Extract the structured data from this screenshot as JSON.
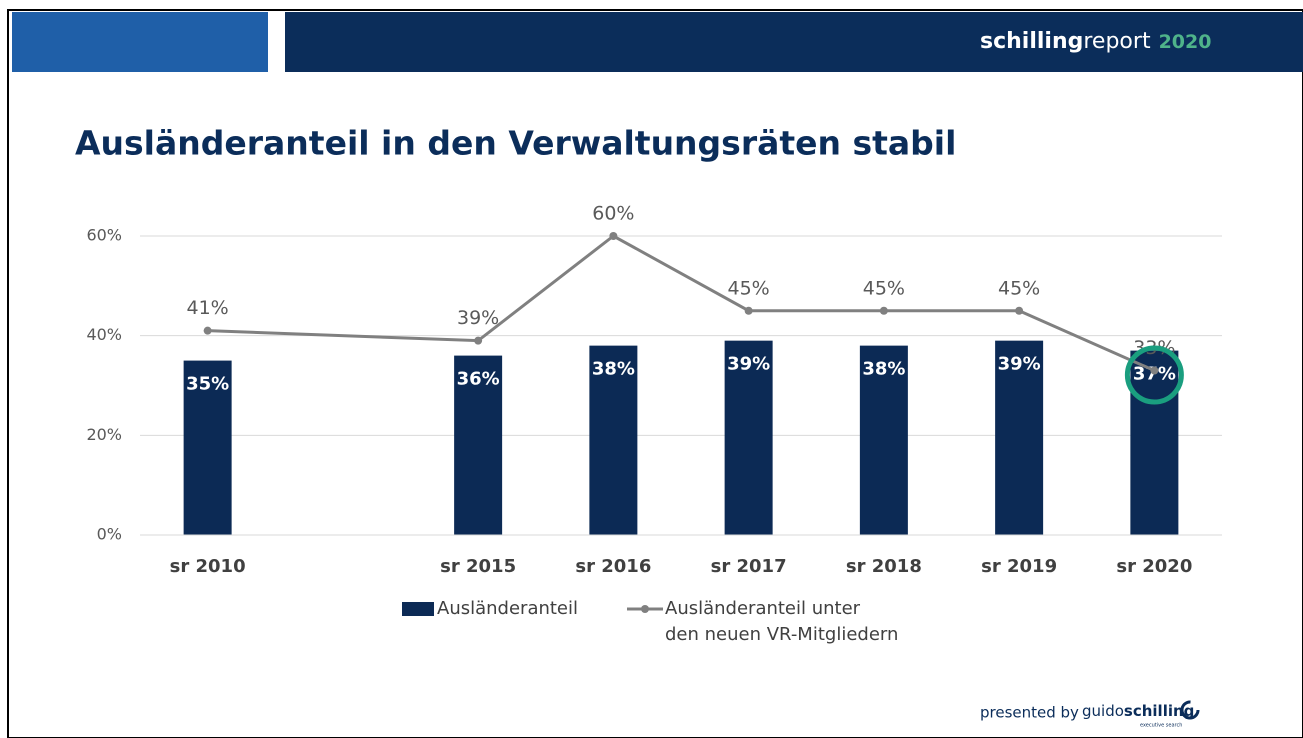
{
  "header": {
    "brand_bold": "schilling",
    "brand": "report",
    "year": "2020"
  },
  "footer": {
    "presented": "presented by",
    "logo_light": "guido",
    "logo_bold": "schilling",
    "logo_sub": "executive search"
  },
  "chart_data": {
    "type": "bar_line",
    "title": "Ausländeranteil in den Verwaltungsräten stabil",
    "categories": [
      "sr 2010",
      null,
      "sr 2015",
      "sr 2016",
      "sr 2017",
      "sr 2018",
      "sr 2019",
      "sr 2020"
    ],
    "series": [
      {
        "name": "Ausländeranteil",
        "type": "bar",
        "color": "#0c2a55",
        "values": [
          35,
          null,
          36,
          38,
          39,
          38,
          39,
          37
        ],
        "value_labels": [
          "35%",
          null,
          "36%",
          "38%",
          "39%",
          "38%",
          "39%",
          "37%"
        ]
      },
      {
        "name": "Ausländeranteil unter\nden neuen VR-Mitgliedern",
        "type": "line",
        "color": "#808080",
        "span_gaps": true,
        "values": [
          41,
          null,
          39,
          60,
          45,
          45,
          45,
          33
        ],
        "value_labels": [
          "41%",
          null,
          "39%",
          "60%",
          "45%",
          "45%",
          "45%",
          "33%"
        ]
      }
    ],
    "ylim": [
      0,
      60
    ],
    "yticks": [
      {
        "value": 0,
        "label": "0%"
      },
      {
        "value": 20,
        "label": "20%"
      },
      {
        "value": 40,
        "label": "40%"
      },
      {
        "value": 60,
        "label": "60%"
      }
    ],
    "grid": true,
    "legend": "bottom"
  }
}
